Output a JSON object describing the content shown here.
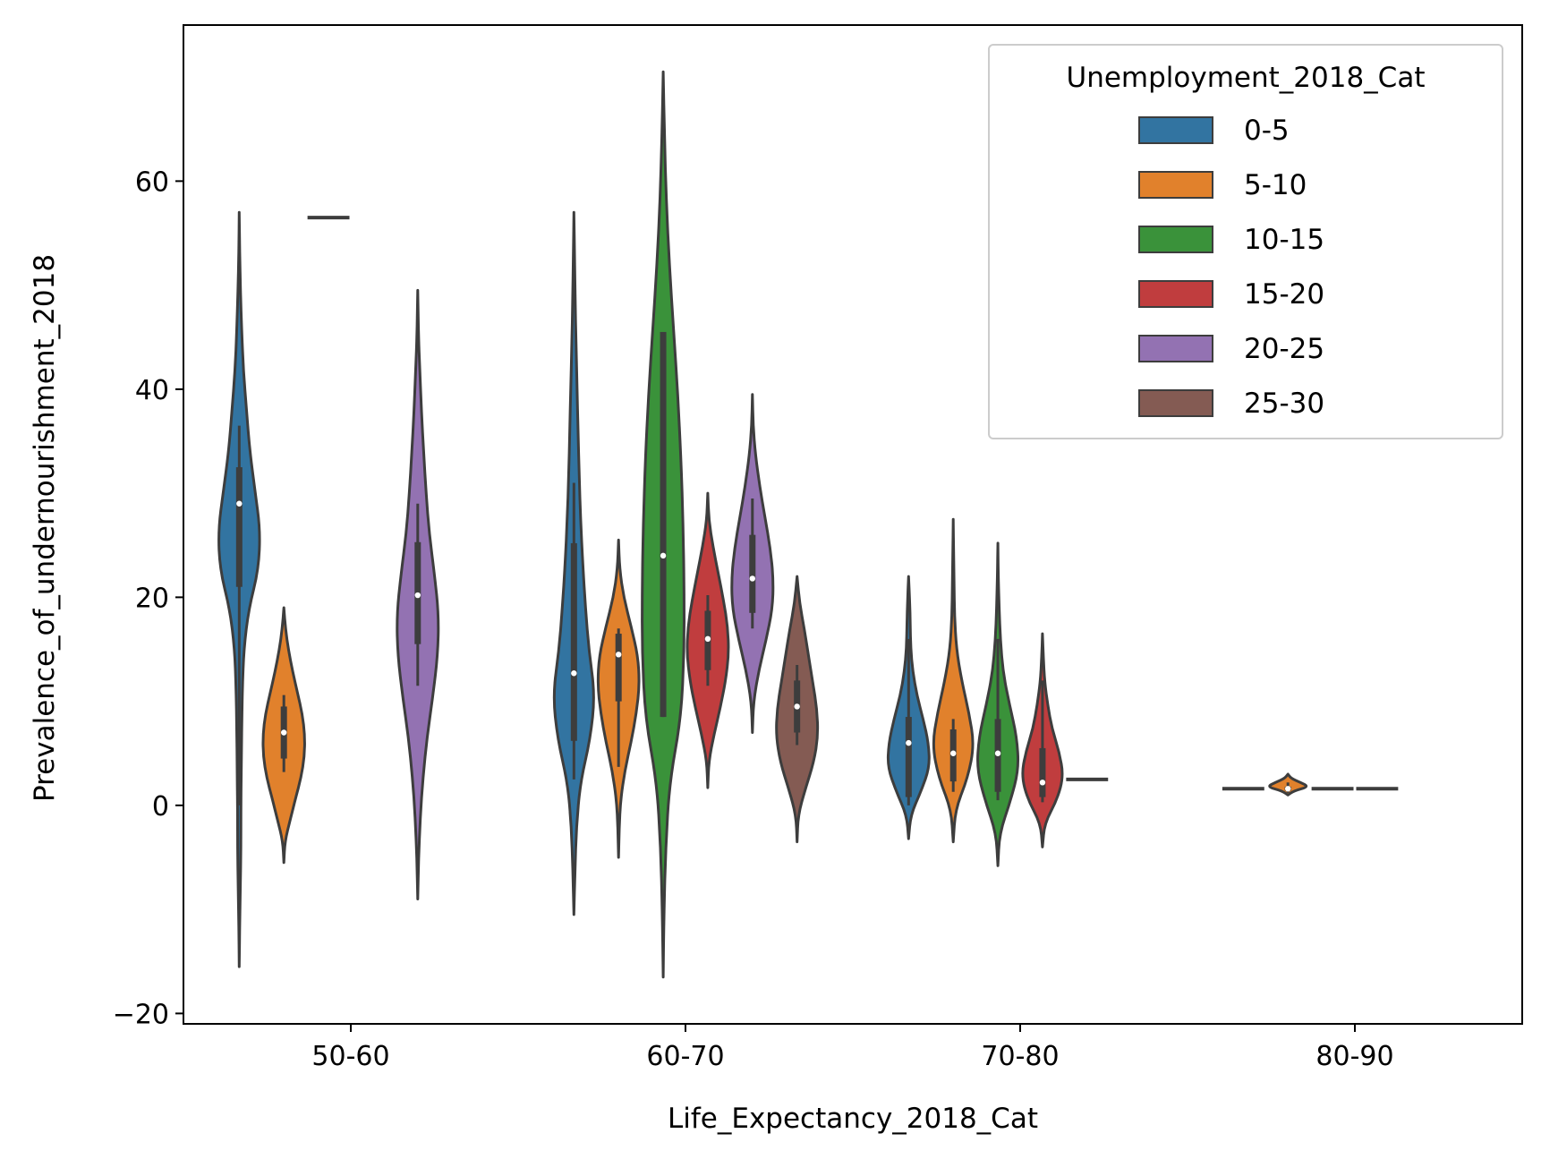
{
  "chart_data": {
    "type": "violin",
    "xlabel": "Life_Expectancy_2018_Cat",
    "ylabel": "Prevalence_of_undernourishment_2018",
    "ylim": [
      -21,
      75
    ],
    "yticks": [
      -20,
      0,
      20,
      40,
      60
    ],
    "ytick_labels": [
      "−20",
      "0",
      "20",
      "40",
      "60"
    ],
    "categories": [
      "50-60",
      "60-70",
      "70-80",
      "80-90"
    ],
    "legend": {
      "title": "Unemployment_2018_Cat",
      "position": "top-right"
    },
    "hue_levels": [
      {
        "name": "0-5",
        "color": "#3274a1"
      },
      {
        "name": "5-10",
        "color": "#e1812c"
      },
      {
        "name": "10-15",
        "color": "#3a923a"
      },
      {
        "name": "15-20",
        "color": "#c03d3e"
      },
      {
        "name": "20-25",
        "color": "#9372b2"
      },
      {
        "name": "25-30",
        "color": "#845b53"
      }
    ],
    "violins": [
      {
        "category": "50-60",
        "hue": "0-5",
        "min": -15.5,
        "max": 57,
        "q1": 21,
        "median": 29,
        "q3": 32.5,
        "wlo": 0,
        "whi": 36.5,
        "shape": [
          0.02,
          0.05,
          0.08,
          0.08,
          0.1,
          0.12,
          0.15,
          0.22,
          0.45,
          0.92,
          1.0,
          0.75,
          0.5,
          0.35,
          0.2,
          0.12,
          0.06,
          0.02
        ]
      },
      {
        "category": "50-60",
        "hue": "5-10",
        "min": -5.5,
        "max": 19,
        "q1": 4.5,
        "median": 7,
        "q3": 9.5,
        "wlo": 3.2,
        "whi": 10.6,
        "shape": [
          0.05,
          0.3,
          0.55,
          0.82,
          0.98,
          1.0,
          0.88,
          0.65,
          0.42,
          0.22,
          0.08
        ]
      },
      {
        "category": "50-60",
        "hue": "10-15",
        "min": 56.5,
        "max": 56.5,
        "q1": 56.5,
        "median": 56.5,
        "q3": 56.5,
        "wlo": 56.5,
        "whi": 56.5,
        "shape": []
      },
      {
        "category": "50-60",
        "hue": "20-25",
        "min": -9,
        "max": 49.5,
        "q1": 15.5,
        "median": 20.2,
        "q3": 25.3,
        "wlo": 11.5,
        "whi": 29,
        "shape": [
          0.04,
          0.12,
          0.25,
          0.45,
          0.72,
          0.95,
          1.0,
          0.8,
          0.55,
          0.4,
          0.28,
          0.18,
          0.1,
          0.03
        ]
      },
      {
        "category": "60-70",
        "hue": "0-5",
        "min": -10.5,
        "max": 57,
        "q1": 6.2,
        "median": 12.7,
        "q3": 25.2,
        "wlo": 2.5,
        "whi": 31,
        "shape": [
          0.05,
          0.12,
          0.3,
          0.78,
          1.0,
          0.72,
          0.55,
          0.42,
          0.32,
          0.25,
          0.2,
          0.15,
          0.1,
          0.06,
          0.03
        ]
      },
      {
        "category": "60-70",
        "hue": "5-10",
        "min": -5,
        "max": 25.5,
        "q1": 10,
        "median": 14.5,
        "q3": 16.5,
        "wlo": 3.7,
        "whi": 17,
        "shape": [
          0.03,
          0.1,
          0.3,
          0.6,
          0.85,
          1.0,
          0.92,
          0.6,
          0.25,
          0.05
        ]
      },
      {
        "category": "60-70",
        "hue": "10-15",
        "min": -16.5,
        "max": 70.5,
        "q1": 8.5,
        "median": 24,
        "q3": 45.5,
        "wlo": 8.5,
        "whi": 45.5,
        "shape": [
          0.04,
          0.12,
          0.3,
          0.85,
          1.0,
          1.0,
          0.95,
          0.85,
          0.7,
          0.5,
          0.3,
          0.15,
          0.06
        ]
      },
      {
        "category": "60-70",
        "hue": "15-20",
        "min": 1.7,
        "max": 30,
        "q1": 13,
        "median": 16,
        "q3": 18.7,
        "wlo": 11.5,
        "whi": 20.2,
        "shape": [
          0.05,
          0.3,
          0.6,
          0.85,
          1.0,
          0.95,
          0.75,
          0.5,
          0.25,
          0.05
        ]
      },
      {
        "category": "60-70",
        "hue": "20-25",
        "min": 7,
        "max": 39.5,
        "q1": 18.5,
        "median": 21.8,
        "q3": 26,
        "wlo": 17,
        "whi": 29.5,
        "shape": [
          0.05,
          0.3,
          0.65,
          0.95,
          1.0,
          0.85,
          0.6,
          0.35,
          0.15,
          0.03
        ]
      },
      {
        "category": "60-70",
        "hue": "25-30",
        "min": -3.5,
        "max": 22,
        "q1": 7,
        "median": 9.5,
        "q3": 12,
        "wlo": 5.8,
        "whi": 13.5,
        "shape": [
          0.05,
          0.4,
          0.8,
          1.0,
          0.95,
          0.75,
          0.55,
          0.35,
          0.12
        ]
      },
      {
        "category": "70-80",
        "hue": "0-5",
        "min": -3.2,
        "max": 22,
        "q1": 0.8,
        "median": 6,
        "q3": 8.5,
        "wlo": 0,
        "whi": 16,
        "shape": [
          0.1,
          0.6,
          1.0,
          0.95,
          0.7,
          0.4,
          0.2,
          0.1,
          0.08,
          0.05
        ]
      },
      {
        "category": "70-80",
        "hue": "5-10",
        "min": -3.5,
        "max": 27.5,
        "q1": 2.3,
        "median": 5,
        "q3": 7.3,
        "wlo": 1.3,
        "whi": 8.3,
        "shape": [
          0.1,
          0.7,
          1.0,
          0.75,
          0.4,
          0.15,
          0.06,
          0.04,
          0.02
        ]
      },
      {
        "category": "70-80",
        "hue": "10-15",
        "min": -5.8,
        "max": 25.2,
        "q1": 1.3,
        "median": 5,
        "q3": 8.3,
        "wlo": 0.5,
        "whi": 16,
        "shape": [
          0.08,
          0.6,
          1.0,
          0.9,
          0.55,
          0.25,
          0.12,
          0.06,
          0.02
        ]
      },
      {
        "category": "70-80",
        "hue": "15-20",
        "min": -4,
        "max": 16.5,
        "q1": 0.8,
        "median": 2.2,
        "q3": 5.5,
        "wlo": 0.3,
        "whi": 12,
        "shape": [
          0.1,
          0.7,
          1.0,
          0.8,
          0.45,
          0.25,
          0.1,
          0.04
        ]
      },
      {
        "category": "70-80",
        "hue": "20-25",
        "min": 2.5,
        "max": 2.5,
        "q1": 2.5,
        "median": 2.5,
        "q3": 2.5,
        "wlo": 2.5,
        "whi": 2.5,
        "shape": []
      },
      {
        "category": "80-90",
        "hue": "0-5",
        "min": 1.6,
        "max": 1.6,
        "q1": 1.6,
        "median": 1.6,
        "q3": 1.6,
        "wlo": 1.6,
        "whi": 1.6,
        "shape": []
      },
      {
        "category": "80-90",
        "hue": "5-10",
        "min": 1.0,
        "max": 3.0,
        "q1": 1.4,
        "median": 1.6,
        "q3": 1.8,
        "wlo": 1.2,
        "whi": 2.2,
        "shape": [
          0.3,
          1.0,
          0.6,
          0.15
        ]
      },
      {
        "category": "80-90",
        "hue": "10-15",
        "min": 1.6,
        "max": 1.6,
        "q1": 1.6,
        "median": 1.6,
        "q3": 1.6,
        "wlo": 1.6,
        "whi": 1.6,
        "shape": []
      },
      {
        "category": "80-90",
        "hue": "15-20",
        "min": 1.6,
        "max": 1.6,
        "q1": 1.6,
        "median": 1.6,
        "q3": 1.6,
        "wlo": 1.6,
        "whi": 1.6,
        "shape": []
      }
    ]
  }
}
